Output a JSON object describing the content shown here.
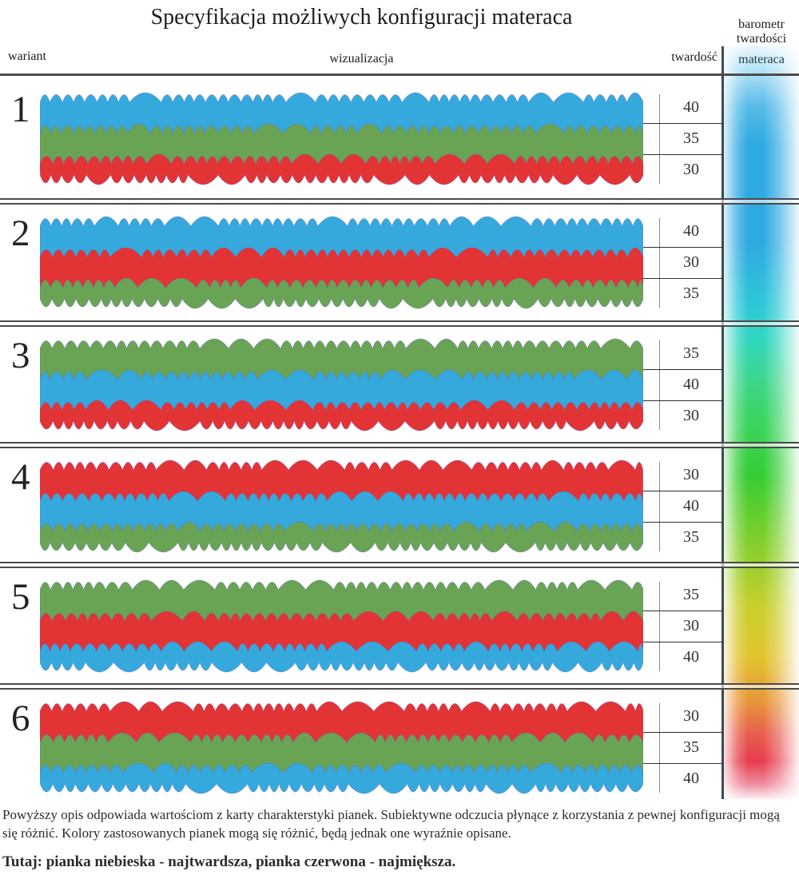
{
  "title": "Specyfikacja możliwych konfiguracji materaca",
  "header": {
    "col_variant": "wariant",
    "col_visualization": "wizualizacja",
    "col_hardness": "twardość",
    "barometer_title": "barometr\ntwardości",
    "barometer_sub": "materaca"
  },
  "palette": {
    "blue": "#36a9dc",
    "green": "#69a455",
    "red": "#e23434",
    "layer_outline": "#6a5acd",
    "separator": "#4a4a4a",
    "barometer_border": "#3d4d52"
  },
  "barometer_gradient_stops": [
    "#eaf6fc",
    "#2fa9e1",
    "#2fd6c3",
    "#35cd33",
    "#c9cf2e",
    "#e8963a",
    "#e83d4e",
    "#fdeef2"
  ],
  "variants": [
    {
      "number": "1",
      "layers": [
        {
          "foam": "blue",
          "hardness": "40"
        },
        {
          "foam": "green",
          "hardness": "35"
        },
        {
          "foam": "red",
          "hardness": "30"
        }
      ]
    },
    {
      "number": "2",
      "layers": [
        {
          "foam": "blue",
          "hardness": "40"
        },
        {
          "foam": "red",
          "hardness": "30"
        },
        {
          "foam": "green",
          "hardness": "35"
        }
      ]
    },
    {
      "number": "3",
      "layers": [
        {
          "foam": "green",
          "hardness": "35"
        },
        {
          "foam": "blue",
          "hardness": "40"
        },
        {
          "foam": "red",
          "hardness": "30"
        }
      ]
    },
    {
      "number": "4",
      "layers": [
        {
          "foam": "red",
          "hardness": "30"
        },
        {
          "foam": "blue",
          "hardness": "40"
        },
        {
          "foam": "green",
          "hardness": "35"
        }
      ]
    },
    {
      "number": "5",
      "layers": [
        {
          "foam": "green",
          "hardness": "35"
        },
        {
          "foam": "red",
          "hardness": "30"
        },
        {
          "foam": "blue",
          "hardness": "40"
        }
      ]
    },
    {
      "number": "6",
      "layers": [
        {
          "foam": "red",
          "hardness": "30"
        },
        {
          "foam": "green",
          "hardness": "35"
        },
        {
          "foam": "blue",
          "hardness": "40"
        }
      ]
    }
  ],
  "layout": {
    "row_tops": [
      96,
      251,
      404,
      556,
      706,
      858
    ],
    "row_bottom": 1000
  },
  "footer": {
    "note": "Powyższy opis odpowiada wartościom z karty charakterstyki pianek. Subiektywne odczucia płynące z korzystania z pewnej konfiguracji mogą się różnić. Kolory zastosowanych pianek mogą się różnić, będą jednak one wyraźnie opisane.",
    "legend": "Tutaj: pianka niebieska - najtwardsza, pianka czerwona - najmiększa."
  }
}
